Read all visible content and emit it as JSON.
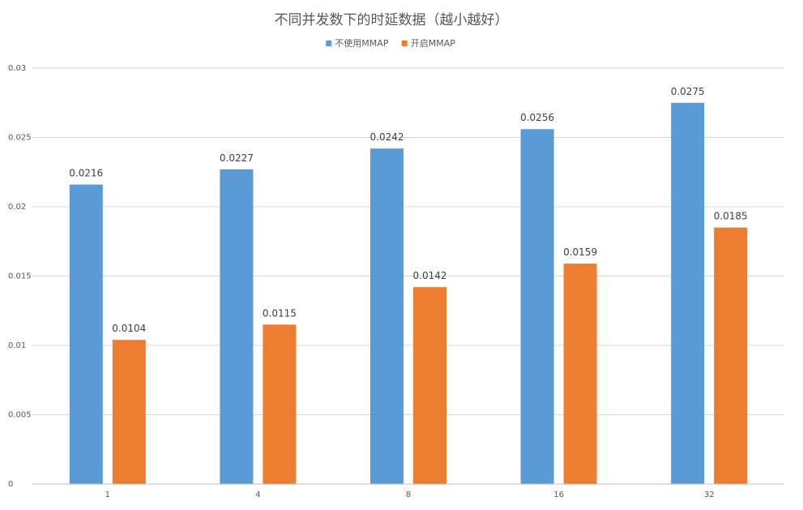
{
  "chart_data": {
    "type": "bar",
    "title": "不同并发数下的时延数据（越小越好）",
    "categories": [
      "1",
      "4",
      "8",
      "16",
      "32"
    ],
    "series": [
      {
        "name": "不使用MMAP",
        "color": "#5b9bd5",
        "values": [
          0.0216,
          0.0227,
          0.0242,
          0.0256,
          0.0275
        ],
        "labels": [
          "0.0216",
          "0.0227",
          "0.0242",
          "0.0256",
          "0.0275"
        ]
      },
      {
        "name": "开启MMAP",
        "color": "#ed7d31",
        "values": [
          0.0104,
          0.0115,
          0.0142,
          0.0159,
          0.0185
        ],
        "labels": [
          "0.0104",
          "0.0115",
          "0.0142",
          "0.0159",
          "0.0185"
        ]
      }
    ],
    "ylim": [
      0,
      0.03
    ],
    "yticks": [
      0,
      0.005,
      0.01,
      0.015,
      0.02,
      0.025,
      0.03
    ],
    "ytick_labels": [
      "0",
      "0.005",
      "0.01",
      "0.015",
      "0.02",
      "0.025",
      "0.03"
    ],
    "xlabel": "",
    "ylabel": "",
    "grid": true,
    "legend_position": "top-center"
  }
}
